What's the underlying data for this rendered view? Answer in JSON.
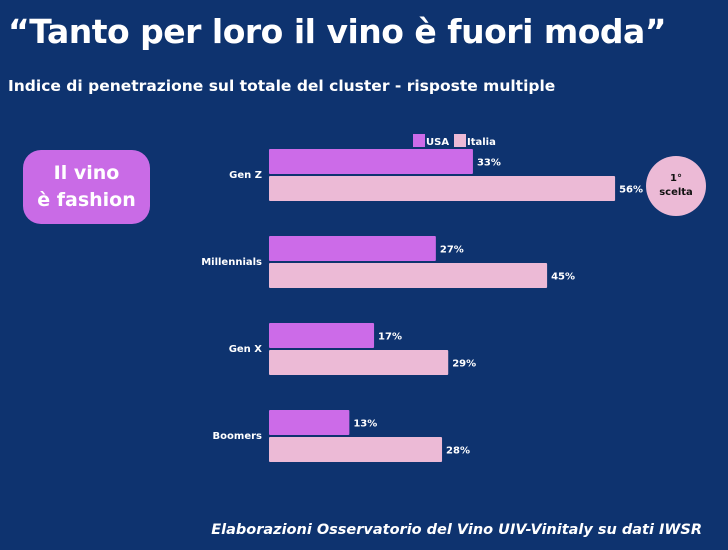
{
  "title": "“Tanto per loro il vino è fuori moda”",
  "subtitle": "Indice di penetrazione sul totale del cluster - risposte multiple",
  "badge": {
    "line1": "Il vino",
    "line2": "è fashion"
  },
  "circle": {
    "line1": "1°",
    "line2": "scelta"
  },
  "source": "Elaborazioni Osservatorio del Vino UIV-Vinitaly su dati IWSR",
  "chart_data": {
    "type": "bar",
    "orientation": "horizontal",
    "categories": [
      "Gen Z",
      "Millennials",
      "Gen X",
      "Boomers"
    ],
    "series": [
      {
        "name": "USA",
        "values": [
          33,
          27,
          17,
          13
        ],
        "color": "#cc6be8",
        "labels": [
          "33%",
          "27%",
          "17%",
          "13%"
        ]
      },
      {
        "name": "Italia",
        "values": [
          56,
          45,
          29,
          28
        ],
        "color": "#ecbad6",
        "labels": [
          "56%",
          "45%",
          "29%",
          "28%"
        ]
      }
    ],
    "legend": "top",
    "unit": "%"
  }
}
